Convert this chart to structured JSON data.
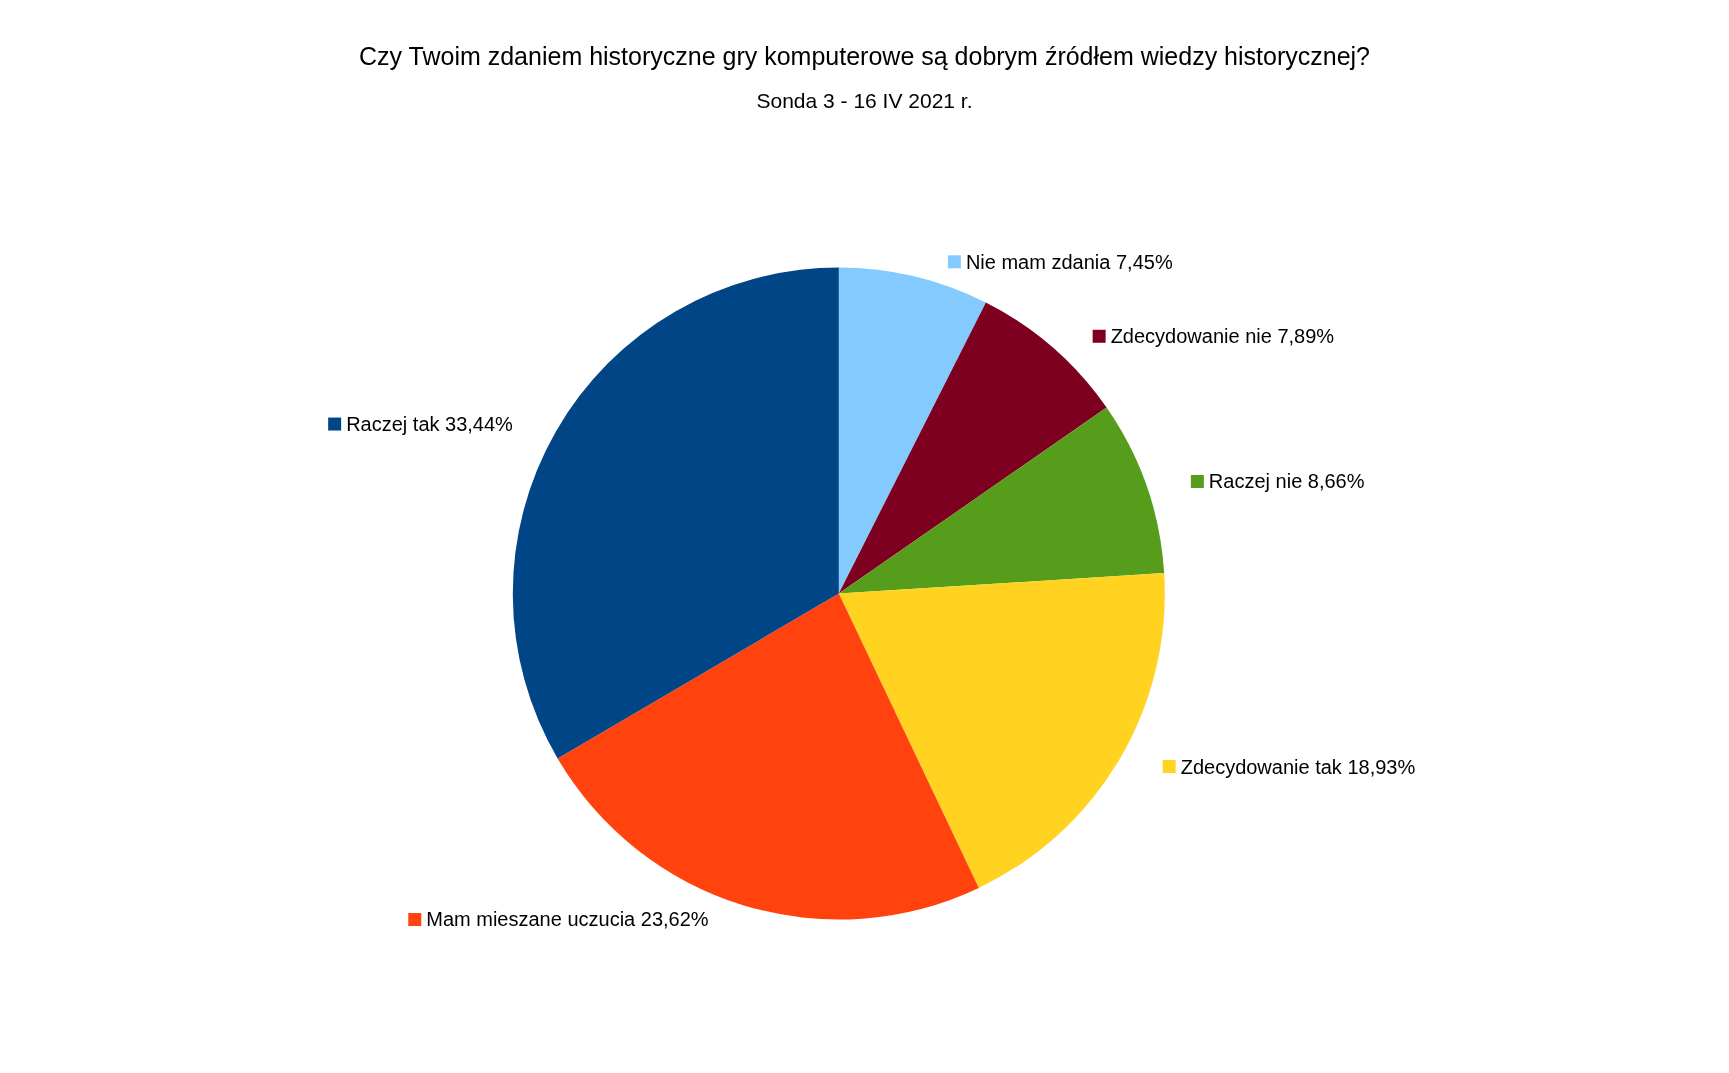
{
  "chart_data": {
    "type": "pie",
    "title": "Czy Twoim zdaniem historyczne gry komputerowe są dobrym źródłem wiedzy historycznej?",
    "subtitle": "Sonda 3 - 16 IV 2021 r.",
    "categories": [
      "Nie mam zdania",
      "Zdecydowanie nie",
      "Raczej nie",
      "Zdecydowanie tak",
      "Mam mieszane uczucia",
      "Raczej tak"
    ],
    "values": [
      7.45,
      7.89,
      8.66,
      18.93,
      23.62,
      33.44
    ],
    "value_labels": [
      "7,45%",
      "7,89%",
      "8,66%",
      "18,93%",
      "23,62%",
      "33,44%"
    ],
    "legend": "right",
    "colors": [
      "#83caff",
      "#7e0021",
      "#579d1c",
      "#ffd320",
      "#ff420e",
      "#004586"
    ]
  }
}
